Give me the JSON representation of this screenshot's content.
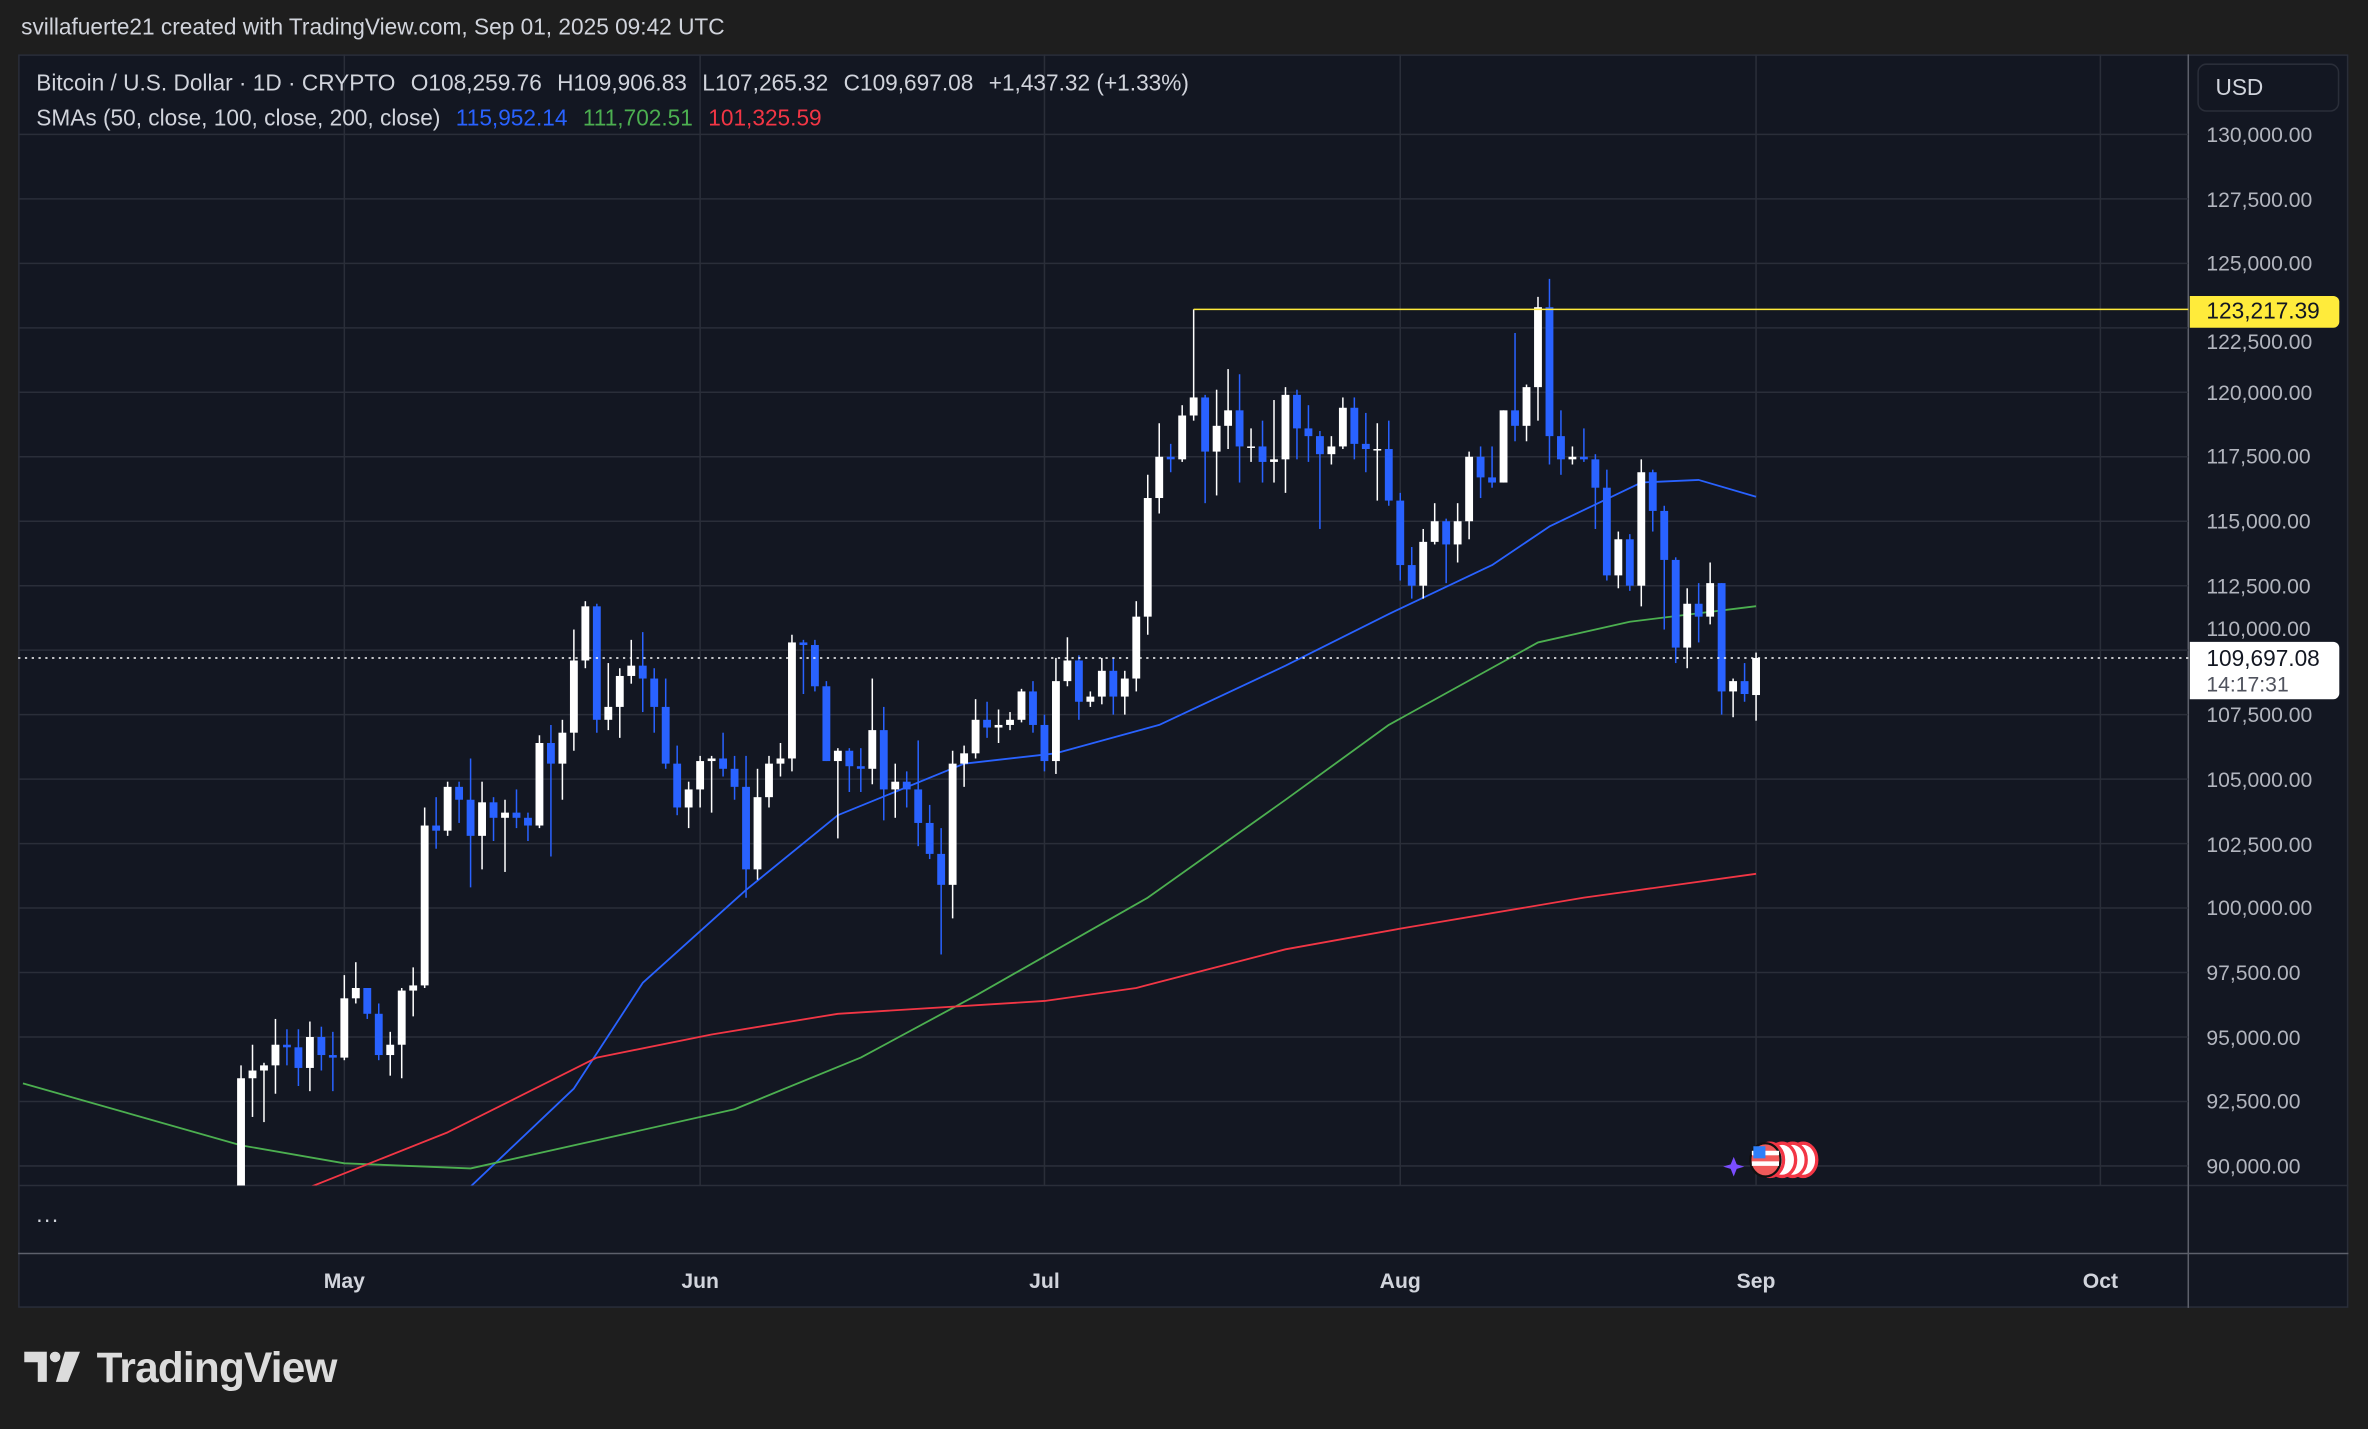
{
  "header": {
    "attribution": "svillafuerte21 created with TradingView.com, Sep 01, 2025 09:42 UTC"
  },
  "legend": {
    "symbol": "Bitcoin / U.S. Dollar · 1D · CRYPTO",
    "open": "O108,259.76",
    "high": "H109,906.83",
    "low": "L107,265.32",
    "close": "C109,697.08",
    "change": "+1,437.32 (+1.33%)",
    "sma_label": "SMAs (50, close, 100, close, 200, close)",
    "sma50": "115,952.14",
    "sma100": "111,702.51",
    "sma200": "101,325.59"
  },
  "colors": {
    "up": "#ffffff",
    "down": "#2962ff",
    "sma50": "#2962ff",
    "sma100": "#4caf50",
    "sma200": "#f23645",
    "level": "#ffeb3b",
    "background": "#131722"
  },
  "currency": "USD",
  "pane_menu": "...",
  "current_price": {
    "label": "109,697.08",
    "countdown": "14:17:31"
  },
  "level_line": {
    "label": "123,217.39"
  },
  "events_icon": "us-economic-events-icon",
  "logo": {
    "text": "TradingView"
  },
  "chart_data": {
    "type": "candlestick",
    "title": "Bitcoin / U.S. Dollar · 1D · CRYPTO",
    "ylim": [
      89250,
      131200
    ],
    "grid": true,
    "price_ticks": [
      "90,000.00",
      "92,500.00",
      "95,000.00",
      "97,500.00",
      "100,000.00",
      "102,500.00",
      "105,000.00",
      "107,500.00",
      "110,000.00",
      "112,500.00",
      "115,000.00",
      "117,500.00",
      "120,000.00",
      "122,500.00",
      "125,000.00",
      "127,500.00",
      "130,000.00"
    ],
    "month_ticks": [
      {
        "label": "May",
        "date": "2025-05-01"
      },
      {
        "label": "Jun",
        "date": "2025-06-01"
      },
      {
        "label": "Jul",
        "date": "2025-07-01"
      },
      {
        "label": "Aug",
        "date": "2025-08-01"
      },
      {
        "label": "Sep",
        "date": "2025-09-01"
      },
      {
        "label": "Oct",
        "date": "2025-10-01"
      }
    ],
    "current_price": 109697.08,
    "level": {
      "price": 123217.39,
      "from": "2025-07-14"
    },
    "candles": [
      [
        "2025-04-22",
        87500,
        93900,
        87100,
        93400
      ],
      [
        "2025-04-23",
        93400,
        94700,
        91900,
        93700
      ],
      [
        "2025-04-24",
        93700,
        94000,
        91700,
        93900
      ],
      [
        "2025-04-25",
        93900,
        95700,
        92800,
        94700
      ],
      [
        "2025-04-26",
        94700,
        95300,
        93900,
        94600
      ],
      [
        "2025-04-27",
        94600,
        95300,
        93100,
        93800
      ],
      [
        "2025-04-28",
        93800,
        95600,
        92900,
        95000
      ],
      [
        "2025-04-29",
        95000,
        95400,
        93700,
        94300
      ],
      [
        "2025-04-30",
        94300,
        95200,
        92900,
        94200
      ],
      [
        "2025-05-01",
        94200,
        97400,
        94100,
        96500
      ],
      [
        "2025-05-02",
        96500,
        97900,
        96300,
        96900
      ],
      [
        "2025-05-03",
        96900,
        96900,
        95700,
        95900
      ],
      [
        "2025-05-04",
        95900,
        96300,
        94100,
        94300
      ],
      [
        "2025-05-05",
        94300,
        95200,
        93500,
        94700
      ],
      [
        "2025-05-06",
        94700,
        96900,
        93400,
        96800
      ],
      [
        "2025-05-07",
        96800,
        97700,
        95800,
        97000
      ],
      [
        "2025-05-08",
        97000,
        103900,
        96900,
        103200
      ],
      [
        "2025-05-09",
        103200,
        104300,
        102300,
        103000
      ],
      [
        "2025-05-10",
        103000,
        104900,
        102800,
        104700
      ],
      [
        "2025-05-11",
        104700,
        104900,
        103300,
        104200
      ],
      [
        "2025-05-12",
        104200,
        105800,
        100800,
        102800
      ],
      [
        "2025-05-13",
        102800,
        104900,
        101500,
        104100
      ],
      [
        "2025-05-14",
        104100,
        104300,
        102600,
        103500
      ],
      [
        "2025-05-15",
        103500,
        104200,
        101400,
        103700
      ],
      [
        "2025-05-16",
        103700,
        104600,
        103100,
        103500
      ],
      [
        "2025-05-17",
        103500,
        103700,
        102600,
        103200
      ],
      [
        "2025-05-18",
        103200,
        106700,
        103100,
        106400
      ],
      [
        "2025-05-19",
        106400,
        107100,
        102000,
        105600
      ],
      [
        "2025-05-20",
        105600,
        107300,
        104200,
        106800
      ],
      [
        "2025-05-21",
        106800,
        110800,
        106100,
        109600
      ],
      [
        "2025-05-22",
        109600,
        111900,
        109300,
        111700
      ],
      [
        "2025-05-23",
        111700,
        111800,
        106800,
        107300
      ],
      [
        "2025-05-24",
        107300,
        109500,
        106900,
        107800
      ],
      [
        "2025-05-25",
        107800,
        109300,
        106600,
        109000
      ],
      [
        "2025-05-26",
        109000,
        110400,
        108700,
        109400
      ],
      [
        "2025-05-27",
        109400,
        110700,
        107600,
        108900
      ],
      [
        "2025-05-28",
        108900,
        109300,
        106800,
        107800
      ],
      [
        "2025-05-29",
        107800,
        108900,
        105400,
        105600
      ],
      [
        "2025-05-30",
        105600,
        106300,
        103600,
        103900
      ],
      [
        "2025-05-31",
        103900,
        104900,
        103100,
        104600
      ],
      [
        "2025-06-01",
        104600,
        105900,
        103900,
        105700
      ],
      [
        "2025-06-02",
        105700,
        105900,
        103700,
        105800
      ],
      [
        "2025-06-03",
        105800,
        106800,
        105100,
        105400
      ],
      [
        "2025-06-04",
        105400,
        105900,
        104200,
        104700
      ],
      [
        "2025-06-05",
        104700,
        105900,
        100400,
        101500
      ],
      [
        "2025-06-06",
        101500,
        105400,
        101100,
        104300
      ],
      [
        "2025-06-07",
        104300,
        105900,
        103900,
        105600
      ],
      [
        "2025-06-08",
        105600,
        106400,
        105100,
        105800
      ],
      [
        "2025-06-09",
        105800,
        110600,
        105300,
        110300
      ],
      [
        "2025-06-10",
        110300,
        110400,
        108300,
        110200
      ],
      [
        "2025-06-11",
        110200,
        110400,
        108400,
        108600
      ],
      [
        "2025-06-12",
        108600,
        108800,
        105700,
        105700
      ],
      [
        "2025-06-13",
        105700,
        106200,
        102700,
        106100
      ],
      [
        "2025-06-14",
        106100,
        106200,
        104500,
        105500
      ],
      [
        "2025-06-15",
        105500,
        106200,
        104500,
        105400
      ],
      [
        "2025-06-16",
        105400,
        108900,
        104800,
        106900
      ],
      [
        "2025-06-17",
        106900,
        107800,
        103400,
        104600
      ],
      [
        "2025-06-18",
        104600,
        105600,
        103500,
        104900
      ],
      [
        "2025-06-19",
        104900,
        105300,
        103900,
        104600
      ],
      [
        "2025-06-20",
        104600,
        106500,
        102400,
        103300
      ],
      [
        "2025-06-21",
        103300,
        104000,
        101900,
        102100
      ],
      [
        "2025-06-22",
        102100,
        103100,
        98200,
        100900
      ],
      [
        "2025-06-23",
        100900,
        106100,
        99600,
        105600
      ],
      [
        "2025-06-24",
        105600,
        106300,
        104700,
        106000
      ],
      [
        "2025-06-25",
        106000,
        108100,
        105800,
        107300
      ],
      [
        "2025-06-26",
        107300,
        108000,
        106600,
        107000
      ],
      [
        "2025-06-27",
        107000,
        107700,
        106400,
        107100
      ],
      [
        "2025-06-28",
        107100,
        107600,
        106900,
        107300
      ],
      [
        "2025-06-29",
        107300,
        108500,
        107200,
        108400
      ],
      [
        "2025-06-30",
        108400,
        108800,
        106800,
        107100
      ],
      [
        "2025-07-01",
        107100,
        107500,
        105300,
        105700
      ],
      [
        "2025-07-02",
        105700,
        109700,
        105200,
        108800
      ],
      [
        "2025-07-03",
        108800,
        110500,
        108600,
        109600
      ],
      [
        "2025-07-04",
        109600,
        109800,
        107300,
        108000
      ],
      [
        "2025-07-05",
        108000,
        108400,
        107800,
        108200
      ],
      [
        "2025-07-06",
        108200,
        109700,
        107900,
        109200
      ],
      [
        "2025-07-07",
        109200,
        109700,
        107500,
        108200
      ],
      [
        "2025-07-08",
        108200,
        109200,
        107500,
        108900
      ],
      [
        "2025-07-09",
        108900,
        111900,
        108400,
        111300
      ],
      [
        "2025-07-10",
        111300,
        116800,
        110600,
        115900
      ],
      [
        "2025-07-11",
        115900,
        118800,
        115300,
        117500
      ],
      [
        "2025-07-12",
        117500,
        118000,
        116900,
        117400
      ],
      [
        "2025-07-13",
        117400,
        119500,
        117300,
        119100
      ],
      [
        "2025-07-14",
        119100,
        123217,
        118900,
        119800
      ],
      [
        "2025-07-15",
        119800,
        119900,
        115700,
        117700
      ],
      [
        "2025-07-16",
        117700,
        120100,
        116000,
        118700
      ],
      [
        "2025-07-17",
        118700,
        120900,
        117800,
        119300
      ],
      [
        "2025-07-18",
        119300,
        120700,
        116500,
        117900
      ],
      [
        "2025-07-19",
        117900,
        118600,
        117300,
        117900
      ],
      [
        "2025-07-20",
        117900,
        118900,
        116500,
        117300
      ],
      [
        "2025-07-21",
        117300,
        119700,
        116500,
        117400
      ],
      [
        "2025-07-22",
        117400,
        120200,
        116100,
        119900
      ],
      [
        "2025-07-23",
        119900,
        120100,
        117400,
        118600
      ],
      [
        "2025-07-24",
        118600,
        119500,
        117300,
        118300
      ],
      [
        "2025-07-25",
        118300,
        118500,
        114700,
        117600
      ],
      [
        "2025-07-26",
        117600,
        118300,
        117200,
        117900
      ],
      [
        "2025-07-27",
        117900,
        119800,
        117800,
        119400
      ],
      [
        "2025-07-28",
        119400,
        119800,
        117400,
        118000
      ],
      [
        "2025-07-29",
        118000,
        119200,
        116900,
        117800
      ],
      [
        "2025-07-30",
        117800,
        118800,
        115800,
        117800
      ],
      [
        "2025-07-31",
        117800,
        118900,
        115600,
        115800
      ],
      [
        "2025-08-01",
        115800,
        116100,
        112700,
        113300
      ],
      [
        "2025-08-02",
        113300,
        114000,
        112000,
        112500
      ],
      [
        "2025-08-03",
        112500,
        114700,
        112000,
        114200
      ],
      [
        "2025-08-04",
        114200,
        115700,
        114100,
        115000
      ],
      [
        "2025-08-05",
        115000,
        115100,
        112600,
        114100
      ],
      [
        "2025-08-06",
        114100,
        115700,
        113400,
        115000
      ],
      [
        "2025-08-07",
        115000,
        117700,
        114300,
        117500
      ],
      [
        "2025-08-08",
        117500,
        117900,
        115900,
        116700
      ],
      [
        "2025-08-09",
        116700,
        117900,
        116300,
        116500
      ],
      [
        "2025-08-10",
        116500,
        119300,
        116500,
        119300
      ],
      [
        "2025-08-11",
        119300,
        122300,
        118100,
        118700
      ],
      [
        "2025-08-12",
        118700,
        120300,
        118100,
        120200
      ],
      [
        "2025-08-13",
        120200,
        123700,
        118900,
        123300
      ],
      [
        "2025-08-14",
        123300,
        124400,
        117200,
        118300
      ],
      [
        "2025-08-15",
        118300,
        119300,
        116800,
        117400
      ],
      [
        "2025-08-16",
        117400,
        117900,
        117200,
        117500
      ],
      [
        "2025-08-17",
        117500,
        118600,
        117300,
        117400
      ],
      [
        "2025-08-18",
        117400,
        117600,
        114700,
        116300
      ],
      [
        "2025-08-19",
        116300,
        117000,
        112700,
        112900
      ],
      [
        "2025-08-20",
        112900,
        114600,
        112400,
        114300
      ],
      [
        "2025-08-21",
        114300,
        114500,
        112300,
        112500
      ],
      [
        "2025-08-22",
        112500,
        117400,
        111700,
        116900
      ],
      [
        "2025-08-23",
        116900,
        117000,
        114600,
        115400
      ],
      [
        "2025-08-24",
        115400,
        115600,
        110800,
        113500
      ],
      [
        "2025-08-25",
        113500,
        113600,
        109500,
        110100
      ],
      [
        "2025-08-26",
        110100,
        112400,
        109300,
        111800
      ],
      [
        "2025-08-27",
        111800,
        112600,
        110300,
        111300
      ],
      [
        "2025-08-28",
        111300,
        113400,
        111000,
        112600
      ],
      [
        "2025-08-29",
        112600,
        112600,
        107500,
        108400
      ],
      [
        "2025-08-30",
        108400,
        108900,
        107400,
        108800
      ],
      [
        "2025-08-31",
        108800,
        109500,
        108000,
        108300
      ],
      [
        "2025-09-01",
        108259.76,
        109906.83,
        107265.32,
        109697.08
      ]
    ],
    "series": [
      {
        "name": "SMA 50",
        "points": [
          [
            "2025-05-08",
            88000
          ],
          [
            "2025-05-12",
            89200
          ],
          [
            "2025-05-21",
            93000
          ],
          [
            "2025-05-27",
            97100
          ],
          [
            "2025-06-05",
            100700
          ],
          [
            "2025-06-13",
            103600
          ],
          [
            "2025-06-24",
            105600
          ],
          [
            "2025-07-02",
            106000
          ],
          [
            "2025-07-11",
            107100
          ],
          [
            "2025-07-22",
            109400
          ],
          [
            "2025-07-31",
            111400
          ],
          [
            "2025-08-09",
            113300
          ],
          [
            "2025-08-14",
            114800
          ],
          [
            "2025-08-22",
            116500
          ],
          [
            "2025-08-27",
            116600
          ],
          [
            "2025-09-01",
            115952.14
          ]
        ]
      },
      {
        "name": "SMA 100",
        "points": [
          [
            "2025-04-03",
            93200
          ],
          [
            "2025-04-22",
            90800
          ],
          [
            "2025-05-01",
            90100
          ],
          [
            "2025-05-12",
            89900
          ],
          [
            "2025-05-23",
            91000
          ],
          [
            "2025-06-04",
            92200
          ],
          [
            "2025-06-15",
            94200
          ],
          [
            "2025-06-25",
            96600
          ],
          [
            "2025-07-10",
            100400
          ],
          [
            "2025-07-22",
            104200
          ],
          [
            "2025-07-31",
            107100
          ],
          [
            "2025-08-13",
            110300
          ],
          [
            "2025-08-21",
            111100
          ],
          [
            "2025-09-01",
            111702.51
          ]
        ]
      },
      {
        "name": "SMA 200",
        "points": [
          [
            "2025-04-27",
            89000
          ],
          [
            "2025-05-10",
            91300
          ],
          [
            "2025-05-23",
            94200
          ],
          [
            "2025-06-02",
            95100
          ],
          [
            "2025-06-13",
            95900
          ],
          [
            "2025-07-01",
            96400
          ],
          [
            "2025-07-09",
            96900
          ],
          [
            "2025-07-22",
            98400
          ],
          [
            "2025-08-01",
            99200
          ],
          [
            "2025-08-17",
            100400
          ],
          [
            "2025-09-01",
            101325.59
          ]
        ]
      }
    ]
  }
}
